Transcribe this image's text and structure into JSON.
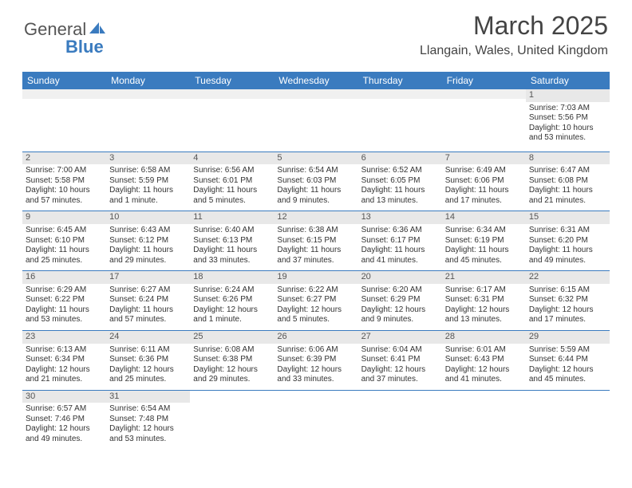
{
  "logo": {
    "text1": "General",
    "text2": "Blue",
    "accent": "#3a7bbf"
  },
  "title": "March 2025",
  "location": "Llangain, Wales, United Kingdom",
  "dayHeaders": [
    "Sunday",
    "Monday",
    "Tuesday",
    "Wednesday",
    "Thursday",
    "Friday",
    "Saturday"
  ],
  "colors": {
    "headerBg": "#3a7bbf",
    "headerText": "#ffffff",
    "cellBorder": "#3a7bbf",
    "dayBandBg": "#e8e8e8",
    "textColor": "#333333",
    "background": "#ffffff"
  },
  "typography": {
    "titleSize": 32,
    "locationSize": 16,
    "headerSize": 12,
    "cellSize": 10
  },
  "weeks": [
    [
      {
        "n": "",
        "sr": "",
        "ss": "",
        "dl": ""
      },
      {
        "n": "",
        "sr": "",
        "ss": "",
        "dl": ""
      },
      {
        "n": "",
        "sr": "",
        "ss": "",
        "dl": ""
      },
      {
        "n": "",
        "sr": "",
        "ss": "",
        "dl": ""
      },
      {
        "n": "",
        "sr": "",
        "ss": "",
        "dl": ""
      },
      {
        "n": "",
        "sr": "",
        "ss": "",
        "dl": ""
      },
      {
        "n": "1",
        "sr": "Sunrise: 7:03 AM",
        "ss": "Sunset: 5:56 PM",
        "dl": "Daylight: 10 hours and 53 minutes."
      }
    ],
    [
      {
        "n": "2",
        "sr": "Sunrise: 7:00 AM",
        "ss": "Sunset: 5:58 PM",
        "dl": "Daylight: 10 hours and 57 minutes."
      },
      {
        "n": "3",
        "sr": "Sunrise: 6:58 AM",
        "ss": "Sunset: 5:59 PM",
        "dl": "Daylight: 11 hours and 1 minute."
      },
      {
        "n": "4",
        "sr": "Sunrise: 6:56 AM",
        "ss": "Sunset: 6:01 PM",
        "dl": "Daylight: 11 hours and 5 minutes."
      },
      {
        "n": "5",
        "sr": "Sunrise: 6:54 AM",
        "ss": "Sunset: 6:03 PM",
        "dl": "Daylight: 11 hours and 9 minutes."
      },
      {
        "n": "6",
        "sr": "Sunrise: 6:52 AM",
        "ss": "Sunset: 6:05 PM",
        "dl": "Daylight: 11 hours and 13 minutes."
      },
      {
        "n": "7",
        "sr": "Sunrise: 6:49 AM",
        "ss": "Sunset: 6:06 PM",
        "dl": "Daylight: 11 hours and 17 minutes."
      },
      {
        "n": "8",
        "sr": "Sunrise: 6:47 AM",
        "ss": "Sunset: 6:08 PM",
        "dl": "Daylight: 11 hours and 21 minutes."
      }
    ],
    [
      {
        "n": "9",
        "sr": "Sunrise: 6:45 AM",
        "ss": "Sunset: 6:10 PM",
        "dl": "Daylight: 11 hours and 25 minutes."
      },
      {
        "n": "10",
        "sr": "Sunrise: 6:43 AM",
        "ss": "Sunset: 6:12 PM",
        "dl": "Daylight: 11 hours and 29 minutes."
      },
      {
        "n": "11",
        "sr": "Sunrise: 6:40 AM",
        "ss": "Sunset: 6:13 PM",
        "dl": "Daylight: 11 hours and 33 minutes."
      },
      {
        "n": "12",
        "sr": "Sunrise: 6:38 AM",
        "ss": "Sunset: 6:15 PM",
        "dl": "Daylight: 11 hours and 37 minutes."
      },
      {
        "n": "13",
        "sr": "Sunrise: 6:36 AM",
        "ss": "Sunset: 6:17 PM",
        "dl": "Daylight: 11 hours and 41 minutes."
      },
      {
        "n": "14",
        "sr": "Sunrise: 6:34 AM",
        "ss": "Sunset: 6:19 PM",
        "dl": "Daylight: 11 hours and 45 minutes."
      },
      {
        "n": "15",
        "sr": "Sunrise: 6:31 AM",
        "ss": "Sunset: 6:20 PM",
        "dl": "Daylight: 11 hours and 49 minutes."
      }
    ],
    [
      {
        "n": "16",
        "sr": "Sunrise: 6:29 AM",
        "ss": "Sunset: 6:22 PM",
        "dl": "Daylight: 11 hours and 53 minutes."
      },
      {
        "n": "17",
        "sr": "Sunrise: 6:27 AM",
        "ss": "Sunset: 6:24 PM",
        "dl": "Daylight: 11 hours and 57 minutes."
      },
      {
        "n": "18",
        "sr": "Sunrise: 6:24 AM",
        "ss": "Sunset: 6:26 PM",
        "dl": "Daylight: 12 hours and 1 minute."
      },
      {
        "n": "19",
        "sr": "Sunrise: 6:22 AM",
        "ss": "Sunset: 6:27 PM",
        "dl": "Daylight: 12 hours and 5 minutes."
      },
      {
        "n": "20",
        "sr": "Sunrise: 6:20 AM",
        "ss": "Sunset: 6:29 PM",
        "dl": "Daylight: 12 hours and 9 minutes."
      },
      {
        "n": "21",
        "sr": "Sunrise: 6:17 AM",
        "ss": "Sunset: 6:31 PM",
        "dl": "Daylight: 12 hours and 13 minutes."
      },
      {
        "n": "22",
        "sr": "Sunrise: 6:15 AM",
        "ss": "Sunset: 6:32 PM",
        "dl": "Daylight: 12 hours and 17 minutes."
      }
    ],
    [
      {
        "n": "23",
        "sr": "Sunrise: 6:13 AM",
        "ss": "Sunset: 6:34 PM",
        "dl": "Daylight: 12 hours and 21 minutes."
      },
      {
        "n": "24",
        "sr": "Sunrise: 6:11 AM",
        "ss": "Sunset: 6:36 PM",
        "dl": "Daylight: 12 hours and 25 minutes."
      },
      {
        "n": "25",
        "sr": "Sunrise: 6:08 AM",
        "ss": "Sunset: 6:38 PM",
        "dl": "Daylight: 12 hours and 29 minutes."
      },
      {
        "n": "26",
        "sr": "Sunrise: 6:06 AM",
        "ss": "Sunset: 6:39 PM",
        "dl": "Daylight: 12 hours and 33 minutes."
      },
      {
        "n": "27",
        "sr": "Sunrise: 6:04 AM",
        "ss": "Sunset: 6:41 PM",
        "dl": "Daylight: 12 hours and 37 minutes."
      },
      {
        "n": "28",
        "sr": "Sunrise: 6:01 AM",
        "ss": "Sunset: 6:43 PM",
        "dl": "Daylight: 12 hours and 41 minutes."
      },
      {
        "n": "29",
        "sr": "Sunrise: 5:59 AM",
        "ss": "Sunset: 6:44 PM",
        "dl": "Daylight: 12 hours and 45 minutes."
      }
    ],
    [
      {
        "n": "30",
        "sr": "Sunrise: 6:57 AM",
        "ss": "Sunset: 7:46 PM",
        "dl": "Daylight: 12 hours and 49 minutes."
      },
      {
        "n": "31",
        "sr": "Sunrise: 6:54 AM",
        "ss": "Sunset: 7:48 PM",
        "dl": "Daylight: 12 hours and 53 minutes."
      },
      {
        "n": "",
        "sr": "",
        "ss": "",
        "dl": ""
      },
      {
        "n": "",
        "sr": "",
        "ss": "",
        "dl": ""
      },
      {
        "n": "",
        "sr": "",
        "ss": "",
        "dl": ""
      },
      {
        "n": "",
        "sr": "",
        "ss": "",
        "dl": ""
      },
      {
        "n": "",
        "sr": "",
        "ss": "",
        "dl": ""
      }
    ]
  ]
}
